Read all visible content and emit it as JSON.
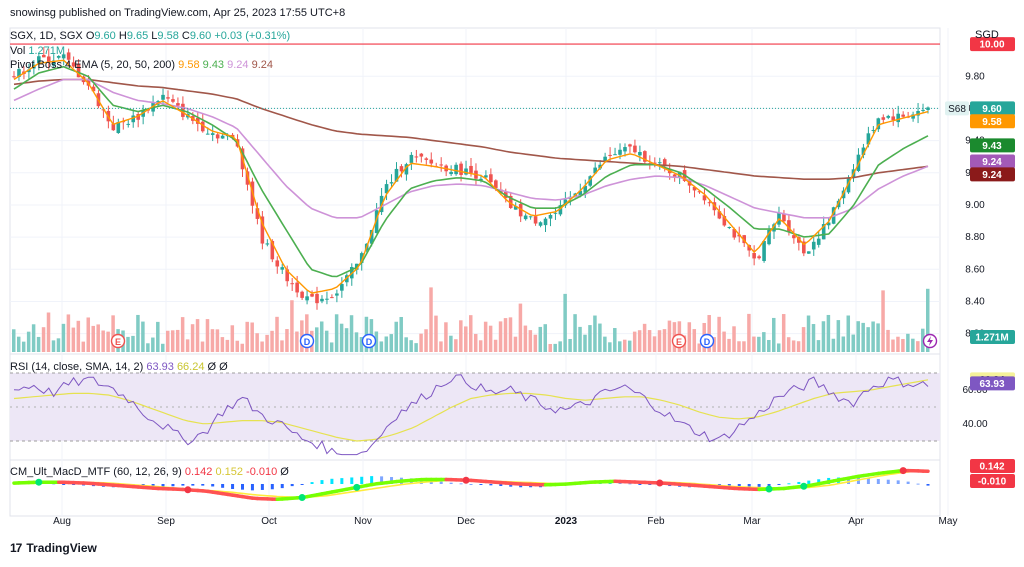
{
  "header": {
    "publisher": "snowinsg published on TradingView.com, Apr 25, 2023 17:55 UTC+8",
    "symbol_line": "SGX, 1D, SGX",
    "ohlc": {
      "o_label": "O",
      "o": "9.60",
      "h_label": "H",
      "h": "9.65",
      "l_label": "L",
      "l": "9.58",
      "c_label": "C",
      "c": "9.60",
      "change": "+0.03 (+0.31%)"
    },
    "vol_label": "Vol",
    "vol_value": "1.271M",
    "indicator_label": "Pivot Boss 4 EMA (5, 20, 50, 200)",
    "ema_values": [
      "9.58",
      "9.43",
      "9.24",
      "9.24"
    ],
    "currency": "SGD"
  },
  "price_axis": {
    "ticks": [
      "9.80",
      "9.60",
      "9.40",
      "9.20",
      "9.00",
      "8.80",
      "8.60",
      "8.40",
      "8.20"
    ],
    "badges": {
      "resistance": "10.00",
      "symbol_tag": "S68",
      "last": "9.60",
      "ema5": "9.58",
      "ema20": "9.43",
      "ema50": "9.24",
      "ema200": "9.24",
      "volume": "1.271M"
    }
  },
  "rsi": {
    "label": "RSI (14, close, SMA, 14, 2)",
    "values": [
      "63.93",
      "66.24",
      "Ø",
      "Ø"
    ],
    "ticks": [
      "60.00",
      "40.00"
    ],
    "badges": {
      "sma": "66.24",
      "rsi": "63.93"
    }
  },
  "macd": {
    "label": "CM_Ult_MacD_MTF (60, 12, 26, 9)",
    "values": [
      "0.142",
      "0.152",
      "-0.010",
      "Ø"
    ],
    "badges": {
      "macd": "0.142",
      "hist": "-0.010"
    }
  },
  "time_axis": {
    "labels": [
      "Aug",
      "Sep",
      "Oct",
      "Nov",
      "Dec",
      "2023",
      "Feb",
      "Mar",
      "Apr",
      "May"
    ]
  },
  "events": [
    "E",
    "D",
    "D",
    "E",
    "D"
  ],
  "footer": {
    "brand": "TradingView",
    "mark": "17"
  },
  "colors": {
    "up": "#26a69a",
    "down": "#ef5350",
    "ema5": "#ff9800",
    "ema20": "#4caf50",
    "ema50": "#ce93d8",
    "ema200": "#a1574a",
    "resistance": "#f23645",
    "rsi": "#7e57c2",
    "rsi_sma": "#e6e250",
    "rsi_band": "#ede7f6",
    "last_badge": "#26a69a"
  },
  "chart_data": {
    "type": "candlestick",
    "title": "SGX, 1D, SGX",
    "ylabel": "SGD",
    "ylim": [
      8.2,
      10.1
    ],
    "resistance_level": 10.0,
    "waypoints": {
      "months": [
        "Aug",
        "Sep",
        "Oct",
        "Nov",
        "Dec",
        "2023",
        "Feb",
        "Mar",
        "Apr"
      ],
      "close_path": [
        9.8,
        9.9,
        9.92,
        9.75,
        9.48,
        9.55,
        9.68,
        9.55,
        9.45,
        9.4,
        8.8,
        8.55,
        8.4,
        8.45,
        8.65,
        9.1,
        9.3,
        9.25,
        9.22,
        9.18,
        9.0,
        8.9,
        8.95,
        9.12,
        9.3,
        9.35,
        9.25,
        9.18,
        9.05,
        8.85,
        8.65,
        8.95,
        8.7,
        8.9,
        9.25,
        9.55,
        9.55,
        9.6
      ],
      "ema5_path": [
        9.78,
        9.88,
        9.9,
        9.76,
        9.5,
        9.55,
        9.65,
        9.56,
        9.46,
        9.42,
        8.9,
        8.6,
        8.45,
        8.48,
        8.62,
        9.05,
        9.26,
        9.24,
        9.21,
        9.18,
        9.02,
        8.93,
        8.96,
        9.1,
        9.28,
        9.32,
        9.25,
        9.18,
        9.06,
        8.88,
        8.7,
        8.92,
        8.75,
        8.9,
        9.2,
        9.5,
        9.54,
        9.58
      ],
      "ema20_path": [
        9.72,
        9.82,
        9.86,
        9.8,
        9.62,
        9.58,
        9.62,
        9.58,
        9.5,
        9.4,
        9.1,
        8.85,
        8.6,
        8.55,
        8.62,
        8.9,
        9.1,
        9.15,
        9.17,
        9.15,
        9.05,
        8.98,
        8.98,
        9.06,
        9.18,
        9.25,
        9.25,
        9.2,
        9.1,
        8.98,
        8.85,
        8.85,
        8.8,
        8.82,
        9.0,
        9.25,
        9.35,
        9.43
      ],
      "ema50_path": [
        9.65,
        9.72,
        9.78,
        9.78,
        9.7,
        9.65,
        9.63,
        9.6,
        9.55,
        9.48,
        9.3,
        9.12,
        8.98,
        8.92,
        8.92,
        9.0,
        9.08,
        9.12,
        9.13,
        9.12,
        9.08,
        9.04,
        9.03,
        9.06,
        9.12,
        9.16,
        9.18,
        9.17,
        9.12,
        9.05,
        8.98,
        8.95,
        8.92,
        8.92,
        8.98,
        9.1,
        9.18,
        9.24
      ],
      "ema200_path": [
        9.75,
        9.77,
        9.78,
        9.78,
        9.76,
        9.74,
        9.73,
        9.71,
        9.69,
        9.66,
        9.6,
        9.55,
        9.5,
        9.46,
        9.44,
        9.43,
        9.42,
        9.4,
        9.38,
        9.36,
        9.33,
        9.31,
        9.29,
        9.28,
        9.27,
        9.26,
        9.25,
        9.24,
        9.22,
        9.2,
        9.18,
        9.17,
        9.16,
        9.16,
        9.17,
        9.2,
        9.22,
        9.24
      ]
    },
    "last": {
      "open": 9.6,
      "high": 9.65,
      "low": 9.58,
      "close": 9.6
    },
    "volume_last": "1.271M",
    "rsi_last": 63.93,
    "rsi_sma_last": 66.24,
    "macd_last": 0.142,
    "signal_last": 0.152,
    "hist_last": -0.01
  }
}
